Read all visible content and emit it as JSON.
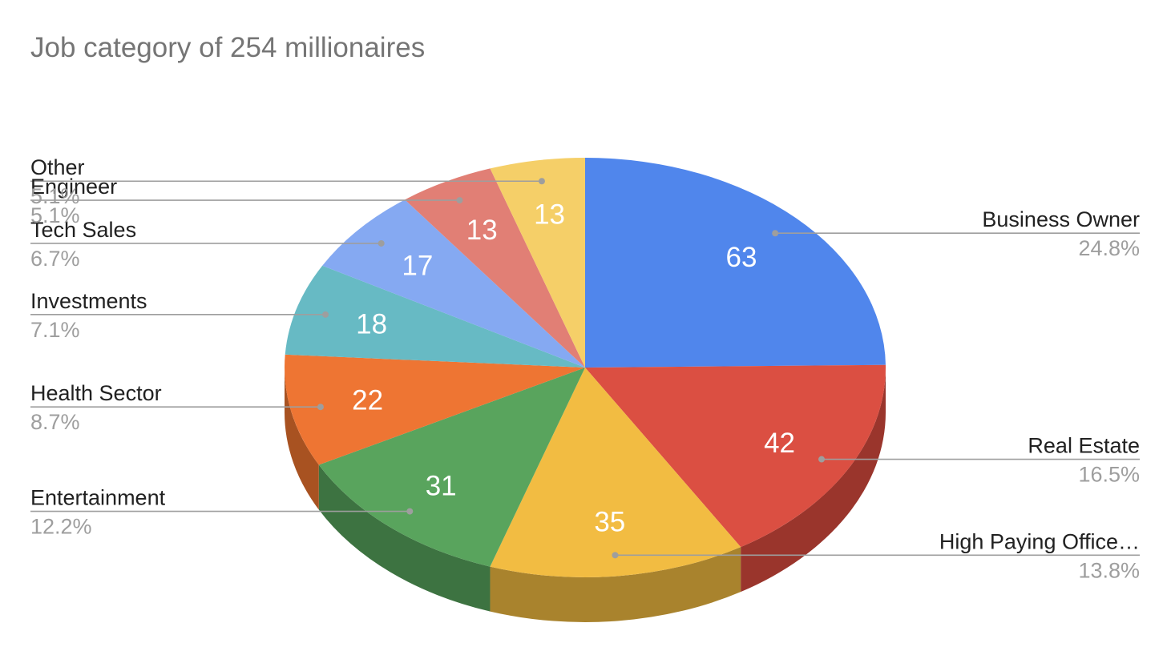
{
  "chart_data": {
    "type": "pie",
    "style": "3d",
    "title": "Job category of 254 millionaires",
    "total": 254,
    "slices": [
      {
        "label": "Business Owner",
        "display_label": "Business Owner",
        "value": 63,
        "percent": "24.8%",
        "color": "#5086EC",
        "side_color": "#3A63AE"
      },
      {
        "label": "Real Estate",
        "display_label": "Real Estate",
        "value": 42,
        "percent": "16.5%",
        "color": "#DB4F42",
        "side_color": "#9A352C"
      },
      {
        "label": "High Paying Office…",
        "display_label": "High Paying Office…",
        "value": 35,
        "percent": "13.8%",
        "color": "#F2BC42",
        "side_color": "#A9832D"
      },
      {
        "label": "Entertainment",
        "display_label": "Entertainment",
        "value": 31,
        "percent": "12.2%",
        "color": "#59A45D",
        "side_color": "#3D7341"
      },
      {
        "label": "Health Sector",
        "display_label": "Health Sector",
        "value": 22,
        "percent": "8.7%",
        "color": "#EE7533",
        "side_color": "#A85221"
      },
      {
        "label": "Investments",
        "display_label": "Investments",
        "value": 18,
        "percent": "7.1%",
        "color": "#67BAC4",
        "side_color": "#478289"
      },
      {
        "label": "Tech Sales",
        "display_label": "Tech Sales",
        "value": 17,
        "percent": "6.7%",
        "color": "#85A9F2",
        "side_color": "#5D77AA"
      },
      {
        "label": "Engineer",
        "display_label": "Engineer",
        "value": 13,
        "percent": "5.1%",
        "color": "#E17F75",
        "side_color": "#9E5952"
      },
      {
        "label": "Other",
        "display_label": "Other",
        "value": 13,
        "percent": "5.1%",
        "color": "#F5CF68",
        "side_color": "#AC9149"
      }
    ],
    "legend": "none",
    "data_labels": "values",
    "callout_labels": "name-and-percent",
    "colors": {
      "label_text": "#212121",
      "percent_text": "#9E9E9E",
      "title_text": "#757575",
      "leader_line": "#9E9E9E"
    }
  }
}
